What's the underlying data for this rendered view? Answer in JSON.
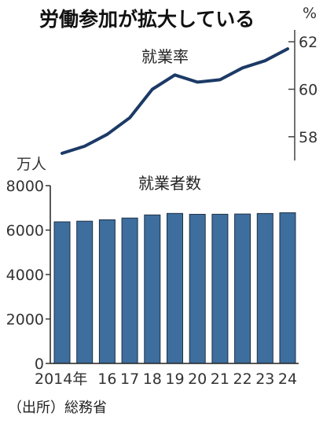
{
  "chart_data": [
    {
      "type": "line",
      "title": "労働参加が拡大している",
      "series": [
        {
          "name": "就業率",
          "values": [
            57.3,
            57.6,
            58.1,
            58.8,
            60.0,
            60.6,
            60.3,
            60.4,
            60.9,
            61.2,
            61.7
          ]
        }
      ],
      "x": [
        "2014",
        "2015",
        "2016",
        "2017",
        "2018",
        "2019",
        "2020",
        "2021",
        "2022",
        "2023",
        "2024"
      ],
      "unit": "%",
      "ylim": [
        57,
        62.5
      ],
      "yticks": [
        "58",
        "60",
        "62"
      ],
      "color": "#1c3a66",
      "legend": "top-center"
    },
    {
      "type": "bar",
      "series": [
        {
          "name": "就業者数",
          "values": [
            6371,
            6401,
            6465,
            6542,
            6682,
            6750,
            6710,
            6713,
            6723,
            6747,
            6781
          ]
        }
      ],
      "categories": [
        "2014年",
        "",
        "16",
        "17",
        "18",
        "19",
        "20",
        "21",
        "22",
        "23",
        "24"
      ],
      "unit": "万人",
      "ylim": [
        0,
        8000
      ],
      "yticks": [
        "0",
        "2000",
        "4000",
        "6000",
        "8000"
      ],
      "color": "#3d6e9e",
      "legend": "top-center"
    }
  ],
  "source": "（出所）総務省"
}
